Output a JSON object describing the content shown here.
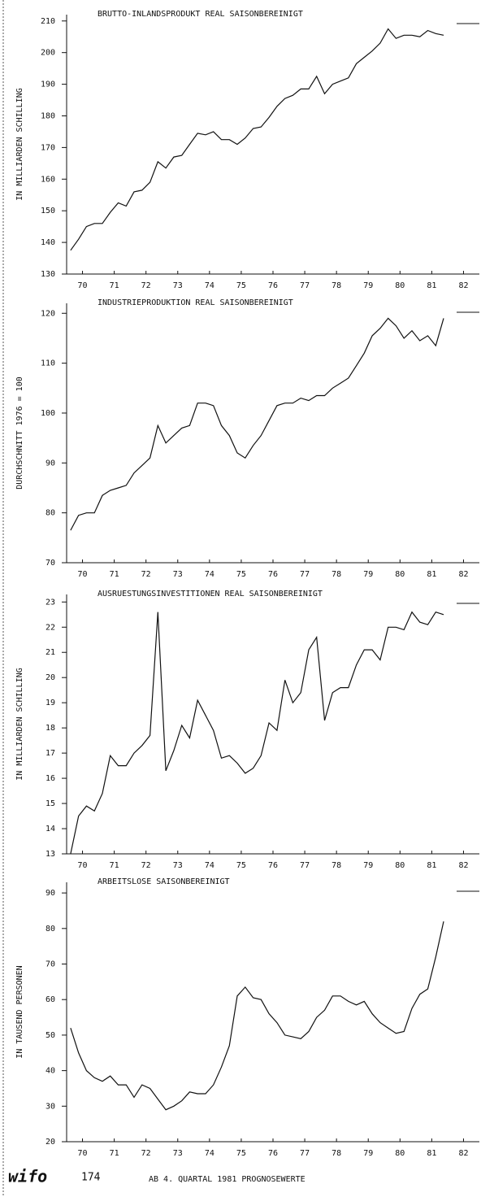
{
  "chart_data": [
    {
      "type": "line",
      "title": "BRUTTO-INLANDSPRODUKT REAL SAISONBEREINIGT",
      "y_label": "IN MILLIARDEN SCHILLING",
      "color": "#111111",
      "x": [
        70.125,
        70.375,
        70.625,
        70.875,
        71.125,
        71.375,
        71.625,
        71.875,
        72.125,
        72.375,
        72.625,
        72.875,
        73.125,
        73.375,
        73.625,
        73.875,
        74.125,
        74.375,
        74.625,
        74.875,
        75.125,
        75.375,
        75.625,
        75.875,
        76.125,
        76.375,
        76.625,
        76.875,
        77.125,
        77.375,
        77.625,
        77.875,
        78.125,
        78.375,
        78.625,
        78.875,
        79.125,
        79.375,
        79.625,
        79.875,
        80.125,
        80.375,
        80.625,
        80.875,
        81.125,
        81.375,
        81.625,
        81.875
      ],
      "values": [
        137.5,
        141,
        145,
        146,
        146,
        149.5,
        152.5,
        151.5,
        156,
        156.5,
        159,
        165.5,
        163.5,
        167,
        167.5,
        171,
        174.5,
        174,
        175,
        172.5,
        172.5,
        171,
        173,
        176,
        176.5,
        179.5,
        183,
        185.5,
        186.5,
        188.5,
        188.5,
        192.5,
        187,
        190,
        191,
        192,
        196.5,
        198.5,
        200.5,
        203,
        207.5,
        204.5,
        205.5,
        205.5,
        205,
        207,
        206,
        205.5
      ],
      "xlim": [
        70,
        83
      ],
      "xticks": [
        {
          "value": 70.5,
          "label": "70"
        },
        {
          "value": 71.5,
          "label": "71"
        },
        {
          "value": 72.5,
          "label": "72"
        },
        {
          "value": 73.5,
          "label": "73"
        },
        {
          "value": 74.5,
          "label": "74"
        },
        {
          "value": 75.5,
          "label": "75"
        },
        {
          "value": 76.5,
          "label": "76"
        },
        {
          "value": 77.5,
          "label": "77"
        },
        {
          "value": 78.5,
          "label": "78"
        },
        {
          "value": 79.5,
          "label": "79"
        },
        {
          "value": 80.5,
          "label": "80"
        },
        {
          "value": 81.5,
          "label": "81"
        },
        {
          "value": 82.5,
          "label": "82"
        }
      ],
      "ylim": [
        130,
        212
      ],
      "yticks": [
        130,
        140,
        150,
        160,
        170,
        180,
        190,
        200,
        210
      ]
    },
    {
      "type": "line",
      "title": "INDUSTRIEPRODUKTION REAL SAISONBEREINIGT",
      "y_label": "DURCHSCHNITT 1976 = 100",
      "color": "#111111",
      "x": [
        70.125,
        70.375,
        70.625,
        70.875,
        71.125,
        71.375,
        71.625,
        71.875,
        72.125,
        72.375,
        72.625,
        72.875,
        73.125,
        73.375,
        73.625,
        73.875,
        74.125,
        74.375,
        74.625,
        74.875,
        75.125,
        75.375,
        75.625,
        75.875,
        76.125,
        76.375,
        76.625,
        76.875,
        77.125,
        77.375,
        77.625,
        77.875,
        78.125,
        78.375,
        78.625,
        78.875,
        79.125,
        79.375,
        79.625,
        79.875,
        80.125,
        80.375,
        80.625,
        80.875,
        81.125,
        81.375,
        81.625,
        81.875
      ],
      "values": [
        76.5,
        79.5,
        80,
        80,
        83.5,
        84.5,
        85,
        85.5,
        88,
        89.5,
        91,
        97.5,
        94,
        95.5,
        97,
        97.5,
        102,
        102,
        101.5,
        97.5,
        95.5,
        92,
        91,
        93.5,
        95.5,
        98.5,
        101.5,
        102,
        102,
        103,
        102.5,
        103.5,
        103.5,
        105,
        106,
        107,
        109.5,
        112,
        115.5,
        117,
        119,
        117.5,
        115,
        116.5,
        114.5,
        115.5,
        113.5,
        119
      ],
      "xlim": [
        70,
        83
      ],
      "xticks": [
        {
          "value": 70.5,
          "label": "70"
        },
        {
          "value": 71.5,
          "label": "71"
        },
        {
          "value": 72.5,
          "label": "72"
        },
        {
          "value": 73.5,
          "label": "73"
        },
        {
          "value": 74.5,
          "label": "74"
        },
        {
          "value": 75.5,
          "label": "75"
        },
        {
          "value": 76.5,
          "label": "76"
        },
        {
          "value": 77.5,
          "label": "77"
        },
        {
          "value": 78.5,
          "label": "78"
        },
        {
          "value": 79.5,
          "label": "79"
        },
        {
          "value": 80.5,
          "label": "80"
        },
        {
          "value": 81.5,
          "label": "81"
        },
        {
          "value": 82.5,
          "label": "82"
        }
      ],
      "ylim": [
        70,
        122
      ],
      "yticks": [
        70,
        80,
        90,
        100,
        110,
        120
      ]
    },
    {
      "type": "line",
      "title": "AUSRUESTUNGSINVESTITIONEN REAL SAISONBEREINIGT",
      "y_label": "IN MILLIARDEN SCHILLING",
      "color": "#111111",
      "x": [
        70.125,
        70.375,
        70.625,
        70.875,
        71.125,
        71.375,
        71.625,
        71.875,
        72.125,
        72.375,
        72.625,
        72.875,
        73.125,
        73.375,
        73.625,
        73.875,
        74.125,
        74.375,
        74.625,
        74.875,
        75.125,
        75.375,
        75.625,
        75.875,
        76.125,
        76.375,
        76.625,
        76.875,
        77.125,
        77.375,
        77.625,
        77.875,
        78.125,
        78.375,
        78.625,
        78.875,
        79.125,
        79.375,
        79.625,
        79.875,
        80.125,
        80.375,
        80.625,
        80.875,
        81.125,
        81.375,
        81.625,
        81.875
      ],
      "values": [
        13,
        14.5,
        14.9,
        14.7,
        15.4,
        16.9,
        16.5,
        16.5,
        17,
        17.3,
        17.7,
        22.6,
        16.3,
        17.1,
        18.1,
        17.6,
        19.1,
        18.5,
        17.9,
        16.8,
        16.9,
        16.6,
        16.2,
        16.4,
        16.9,
        18.2,
        17.9,
        19.9,
        19,
        19.4,
        21.1,
        21.6,
        18.3,
        19.4,
        19.6,
        19.6,
        20.5,
        21.1,
        21.1,
        20.7,
        22,
        22,
        21.9,
        22.6,
        22.2,
        22.1,
        22.6,
        22.5
      ],
      "xlim": [
        70,
        83
      ],
      "xticks": [
        {
          "value": 70.5,
          "label": "70"
        },
        {
          "value": 71.5,
          "label": "71"
        },
        {
          "value": 72.5,
          "label": "72"
        },
        {
          "value": 73.5,
          "label": "73"
        },
        {
          "value": 74.5,
          "label": "74"
        },
        {
          "value": 75.5,
          "label": "75"
        },
        {
          "value": 76.5,
          "label": "76"
        },
        {
          "value": 77.5,
          "label": "77"
        },
        {
          "value": 78.5,
          "label": "78"
        },
        {
          "value": 79.5,
          "label": "79"
        },
        {
          "value": 80.5,
          "label": "80"
        },
        {
          "value": 81.5,
          "label": "81"
        },
        {
          "value": 82.5,
          "label": "82"
        }
      ],
      "ylim": [
        13,
        23.3
      ],
      "yticks": [
        13,
        14,
        15,
        16,
        17,
        18,
        19,
        20,
        21,
        22,
        23
      ]
    },
    {
      "type": "line",
      "title": "ARBEITSLOSE SAISONBEREINIGT",
      "y_label": "IN TAUSEND PERSONEN",
      "color": "#111111",
      "x": [
        70.125,
        70.375,
        70.625,
        70.875,
        71.125,
        71.375,
        71.625,
        71.875,
        72.125,
        72.375,
        72.625,
        72.875,
        73.125,
        73.375,
        73.625,
        73.875,
        74.125,
        74.375,
        74.625,
        74.875,
        75.125,
        75.375,
        75.625,
        75.875,
        76.125,
        76.375,
        76.625,
        76.875,
        77.125,
        77.375,
        77.625,
        77.875,
        78.125,
        78.375,
        78.625,
        78.875,
        79.125,
        79.375,
        79.625,
        79.875,
        80.125,
        80.375,
        80.625,
        80.875,
        81.125,
        81.375,
        81.625,
        81.875
      ],
      "values": [
        52,
        45,
        40,
        38,
        37,
        38.5,
        36,
        36,
        32.5,
        36,
        35,
        32,
        29,
        30,
        31.5,
        34,
        33.5,
        33.5,
        36,
        41,
        47,
        61,
        63.5,
        60.5,
        60,
        56,
        53.5,
        50,
        49.5,
        49,
        51,
        55,
        57,
        61,
        61,
        59.5,
        58.5,
        59.5,
        56,
        53.5,
        52,
        50.5,
        51,
        57.5,
        61.5,
        63,
        72,
        82
      ],
      "xlim": [
        70,
        83
      ],
      "xticks": [
        {
          "value": 70.5,
          "label": "70"
        },
        {
          "value": 71.5,
          "label": "71"
        },
        {
          "value": 72.5,
          "label": "72"
        },
        {
          "value": 73.5,
          "label": "73"
        },
        {
          "value": 74.5,
          "label": "74"
        },
        {
          "value": 75.5,
          "label": "75"
        },
        {
          "value": 76.5,
          "label": "76"
        },
        {
          "value": 77.5,
          "label": "77"
        },
        {
          "value": 78.5,
          "label": "78"
        },
        {
          "value": 79.5,
          "label": "79"
        },
        {
          "value": 80.5,
          "label": "80"
        },
        {
          "value": 81.5,
          "label": "81"
        },
        {
          "value": 82.5,
          "label": "82"
        }
      ],
      "ylim": [
        20,
        93
      ],
      "yticks": [
        20,
        30,
        40,
        50,
        60,
        70,
        80,
        90
      ]
    }
  ],
  "footer": {
    "logo": "wifo",
    "page": "174",
    "note": "AB 4. QUARTAL 1981 PROGNOSEWERTE"
  }
}
